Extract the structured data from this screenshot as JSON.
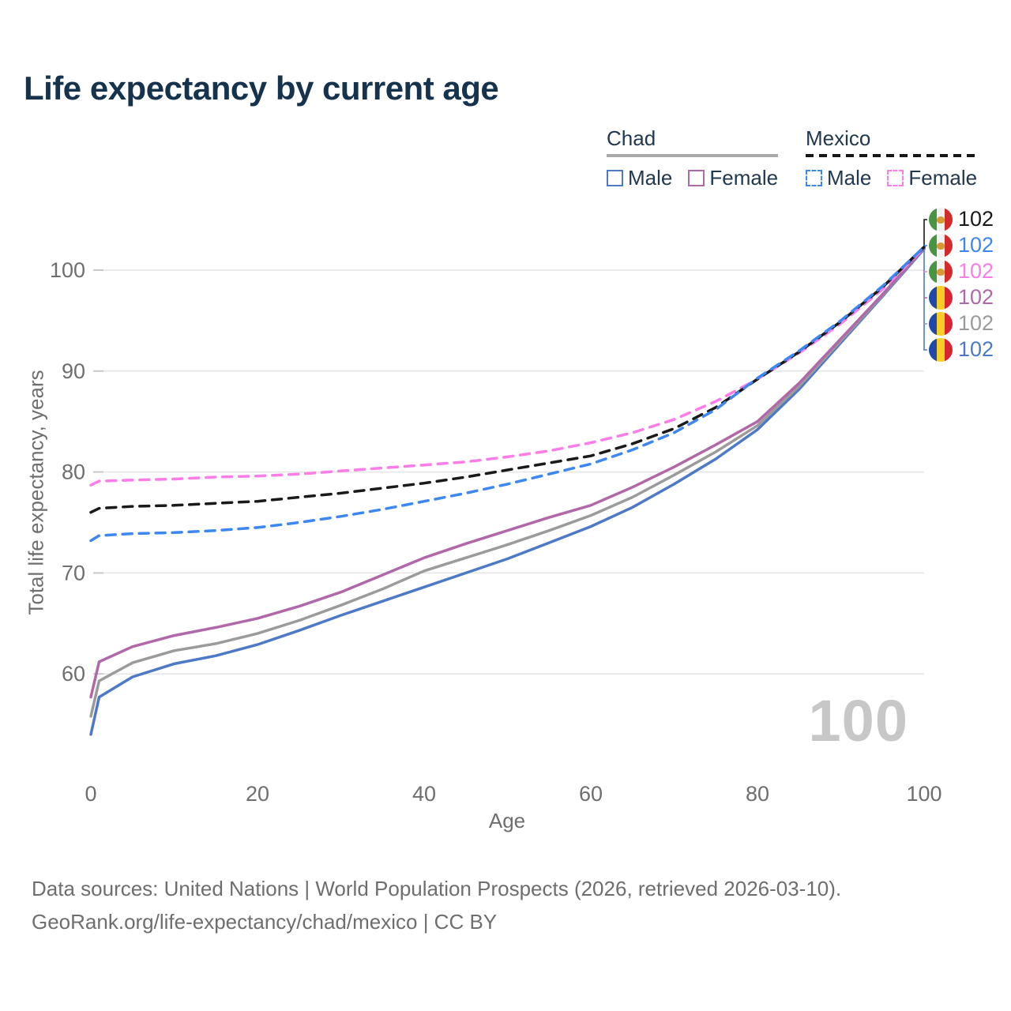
{
  "title": "Life expectancy by current age",
  "legend": {
    "groups": [
      {
        "country": "Chad",
        "style": "solid",
        "items": [
          {
            "label": "Male",
            "color": "#4d79c6"
          },
          {
            "label": "Female",
            "color": "#b168a8"
          }
        ]
      },
      {
        "country": "Mexico",
        "style": "dashed",
        "items": [
          {
            "label": "Male",
            "color": "#3c87f0"
          },
          {
            "label": "Female",
            "color": "#fc7ce8"
          }
        ]
      }
    ]
  },
  "age_indicator": "100",
  "annotations": [
    {
      "flag": "mexico",
      "value": "102",
      "color": "#1a1a1a"
    },
    {
      "flag": "mexico",
      "value": "102",
      "color": "#3c87f0"
    },
    {
      "flag": "mexico",
      "value": "102",
      "color": "#fc7ce8"
    },
    {
      "flag": "chad",
      "value": "102",
      "color": "#b168a8"
    },
    {
      "flag": "chad",
      "value": "102",
      "color": "#9b9b9b"
    },
    {
      "flag": "chad",
      "value": "102",
      "color": "#4d79c6"
    }
  ],
  "footer": {
    "line1": "Data sources: United Nations | World Population Prospects (2026, retrieved 2026-03-10).",
    "line2": "GeoRank.org/life-expectancy/chad/mexico | CC BY"
  },
  "chart_data": {
    "type": "line",
    "title": "Life expectancy by current age",
    "xlabel": "Age",
    "ylabel": "Total life expectancy, years",
    "xlim": [
      0,
      100
    ],
    "ylim": [
      54,
      103
    ],
    "x_ticks": [
      0,
      20,
      40,
      60,
      80,
      100
    ],
    "y_ticks": [
      100,
      90,
      80,
      70,
      60
    ],
    "grid": "horizontal",
    "legend_position": "top-right",
    "x": [
      0,
      1,
      5,
      10,
      15,
      20,
      25,
      30,
      35,
      40,
      45,
      50,
      55,
      60,
      65,
      70,
      75,
      80,
      85,
      90,
      95,
      100
    ],
    "series": [
      {
        "name": "Chad Male",
        "country": "Chad",
        "sex": "male",
        "style": "solid",
        "color": "#4d79c6",
        "values": [
          54.0,
          57.7,
          59.7,
          61.0,
          61.8,
          62.9,
          64.3,
          65.8,
          67.2,
          68.6,
          70.0,
          71.4,
          73.0,
          74.6,
          76.5,
          78.8,
          81.3,
          84.2,
          88.2,
          92.8,
          97.4,
          102.1
        ]
      },
      {
        "name": "Chad Both sexes",
        "country": "Chad",
        "sex": "both",
        "style": "solid",
        "color": "#9b9b9b",
        "values": [
          55.8,
          59.3,
          61.1,
          62.3,
          63.0,
          64.0,
          65.3,
          66.8,
          68.4,
          70.2,
          71.5,
          72.8,
          74.2,
          75.7,
          77.5,
          79.7,
          82.0,
          84.6,
          88.5,
          93.0,
          97.5,
          102.2
        ]
      },
      {
        "name": "Chad Female",
        "country": "Chad",
        "sex": "female",
        "style": "solid",
        "color": "#b168a8",
        "values": [
          57.7,
          61.2,
          62.7,
          63.8,
          64.6,
          65.5,
          66.7,
          68.1,
          69.8,
          71.5,
          72.9,
          74.2,
          75.5,
          76.7,
          78.5,
          80.5,
          82.7,
          85.0,
          88.8,
          93.2,
          97.6,
          102.2
        ]
      },
      {
        "name": "Mexico Female",
        "country": "Mexico",
        "sex": "female",
        "style": "dashed",
        "color": "#fc7ce8",
        "values": [
          78.7,
          79.1,
          79.2,
          79.3,
          79.5,
          79.6,
          79.8,
          80.1,
          80.4,
          80.7,
          81.0,
          81.5,
          82.1,
          82.9,
          83.9,
          85.2,
          87.0,
          89.2,
          91.8,
          94.7,
          98.1,
          102.2
        ]
      },
      {
        "name": "Mexico Both sexes",
        "country": "Mexico",
        "sex": "both",
        "style": "dashed",
        "color": "#1a1a1a",
        "values": [
          76.0,
          76.4,
          76.6,
          76.7,
          76.9,
          77.1,
          77.5,
          77.9,
          78.4,
          78.9,
          79.5,
          80.2,
          80.9,
          81.6,
          82.8,
          84.3,
          86.4,
          89.2,
          91.9,
          94.9,
          98.3,
          102.3
        ]
      },
      {
        "name": "Mexico Male",
        "country": "Mexico",
        "sex": "male",
        "style": "dashed",
        "color": "#3c87f0",
        "values": [
          73.2,
          73.7,
          73.9,
          74.0,
          74.2,
          74.5,
          75.0,
          75.6,
          76.3,
          77.1,
          77.9,
          78.8,
          79.8,
          80.8,
          82.2,
          83.9,
          86.2,
          89.3,
          92.0,
          95.0,
          98.4,
          102.3
        ]
      }
    ],
    "end_value_label": "102"
  }
}
